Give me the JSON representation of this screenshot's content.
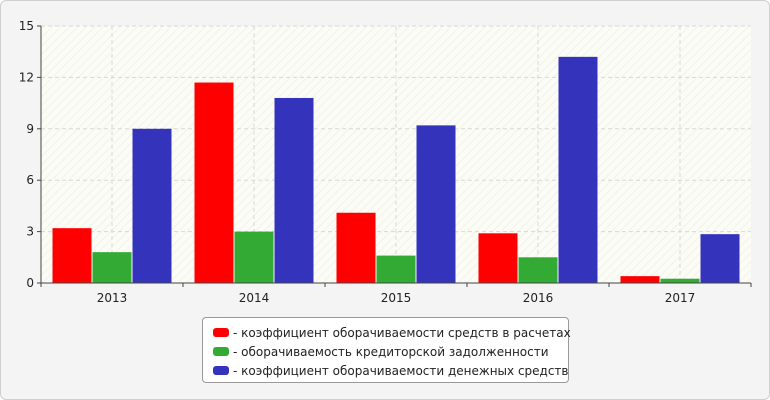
{
  "chart_data": {
    "type": "bar",
    "categories": [
      "2013",
      "2014",
      "2015",
      "2016",
      "2017"
    ],
    "series": [
      {
        "name": "- коэффициент оборачиваемости средств в расчетах",
        "color": "#ff0000",
        "values": [
          3.2,
          11.7,
          4.1,
          2.9,
          0.4
        ]
      },
      {
        "name": "- оборачиваемость кредиторской задолженности",
        "color": "#33aa33",
        "values": [
          1.8,
          3.0,
          1.6,
          1.5,
          0.25
        ]
      },
      {
        "name": "- коэффициент оборачиваемости денежных средств",
        "color": "#3333bb",
        "values": [
          9.0,
          10.8,
          9.2,
          13.2,
          2.85
        ]
      }
    ],
    "ylim": [
      0,
      15
    ],
    "yticks": [
      "0",
      "3",
      "6",
      "9",
      "12",
      "15"
    ],
    "grid": true,
    "legend_position": "bottom-center",
    "title": "",
    "xlabel": "",
    "ylabel": ""
  }
}
